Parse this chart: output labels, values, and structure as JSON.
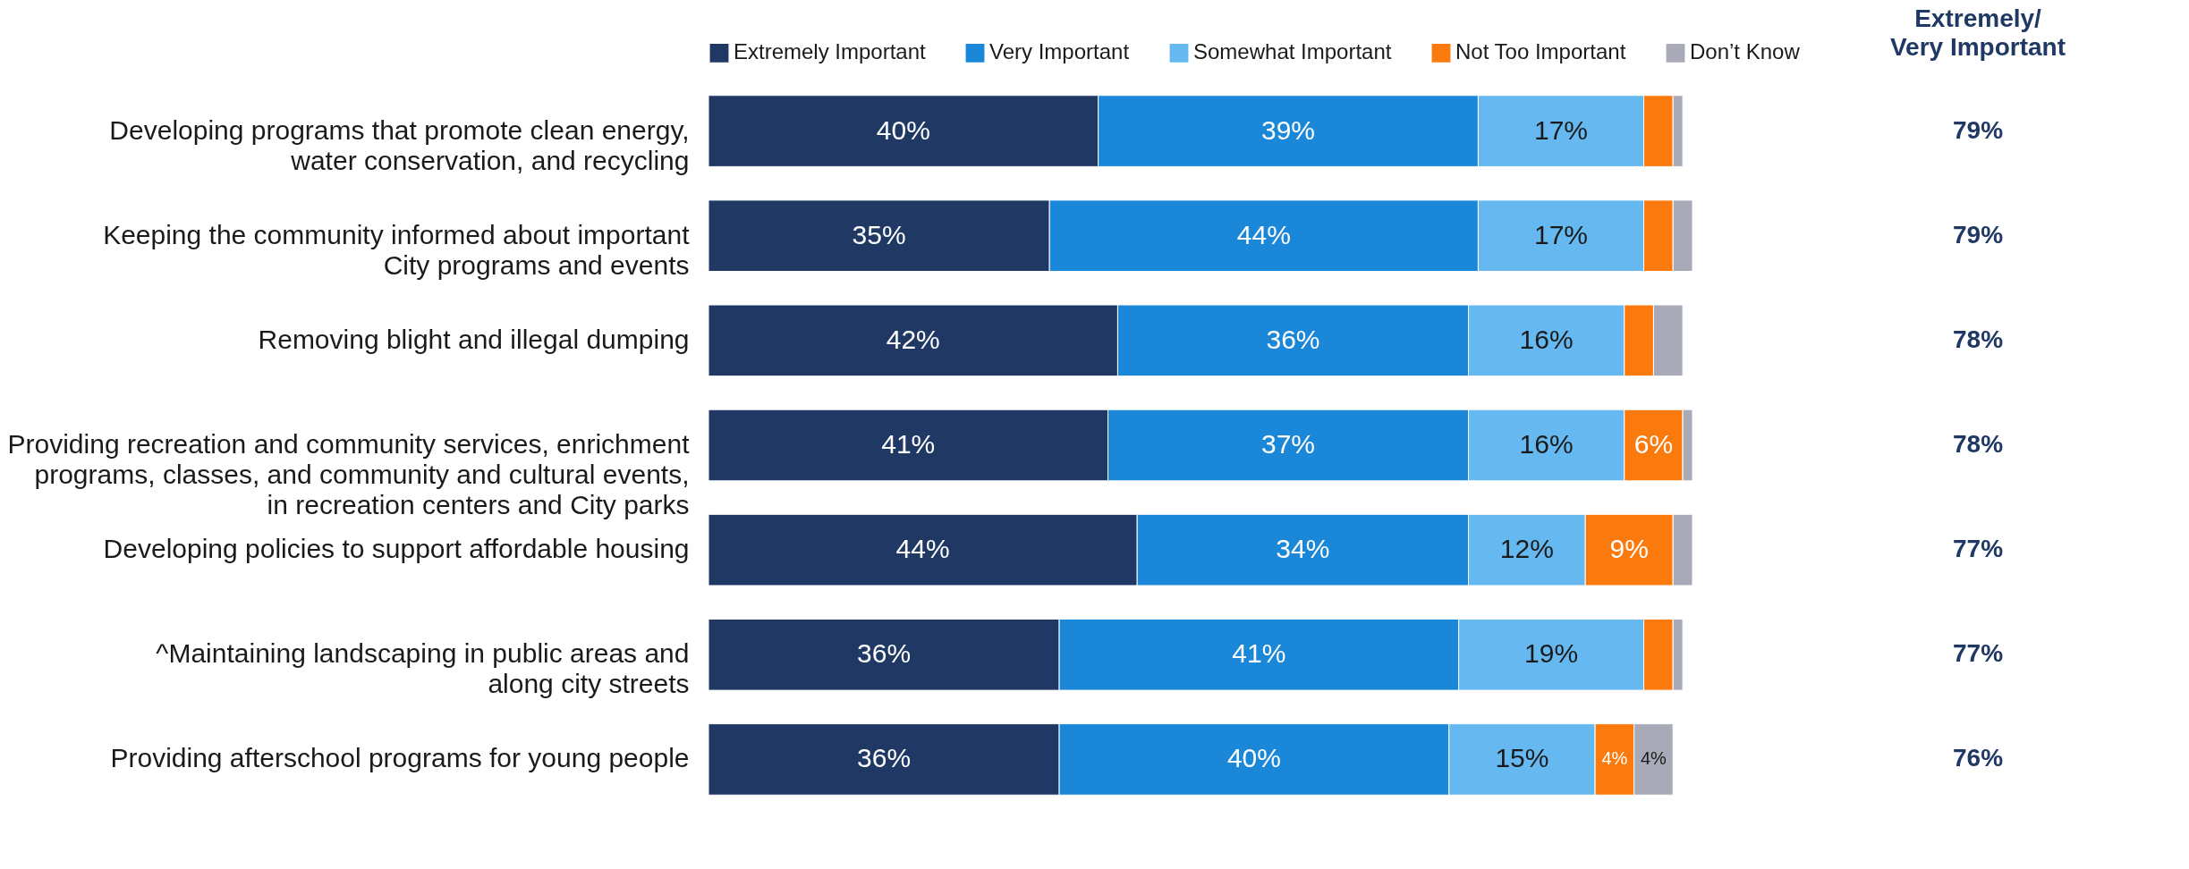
{
  "chart_data": {
    "type": "bar",
    "orientation": "horizontal",
    "stacked": true,
    "legend": "top",
    "categories": [
      "Developing programs that promote clean energy,\nwater conservation, and recycling",
      "Keeping the community informed about important\nCity programs and events",
      "Removing blight and illegal dumping",
      "Providing recreation and community services, enrichment\nprograms, classes, and community and cultural events,\nin recreation centers and City parks",
      "Developing policies to support affordable housing",
      "^Maintaining landscaping in public areas and\nalong city streets",
      "Providing afterschool programs for young people"
    ],
    "series": [
      {
        "name": "Extremely Important",
        "color": "#1f3864",
        "values": [
          40,
          35,
          42,
          41,
          44,
          36,
          36
        ],
        "value_labels": [
          "40%",
          "35%",
          "42%",
          "41%",
          "44%",
          "36%",
          "36%"
        ]
      },
      {
        "name": "Very Important",
        "color": "#1a87d8",
        "values": [
          39,
          44,
          36,
          37,
          34,
          41,
          40
        ],
        "value_labels": [
          "39%",
          "44%",
          "36%",
          "37%",
          "34%",
          "41%",
          "40%"
        ]
      },
      {
        "name": "Somewhat Important",
        "color": "#66b9f0",
        "values": [
          17,
          17,
          16,
          16,
          12,
          19,
          15
        ],
        "value_labels": [
          "17%",
          "17%",
          "16%",
          "16%",
          "12%",
          "19%",
          "15%"
        ]
      },
      {
        "name": "Not Too Important",
        "color": "#fa7a0e",
        "values": [
          3,
          3,
          3,
          6,
          9,
          3,
          4
        ],
        "value_labels": [
          null,
          null,
          null,
          "6%",
          "9%",
          null,
          "4%"
        ]
      },
      {
        "name": "Don’t Know",
        "color": "#a9aab8",
        "values": [
          1,
          2,
          3,
          1,
          2,
          1,
          4
        ],
        "value_labels": [
          null,
          null,
          null,
          null,
          null,
          null,
          "4%"
        ]
      }
    ],
    "annotations": [
      "Extremely/\nVery Important",
      "79%",
      "79%",
      "78%",
      "78%",
      "77%",
      "77%",
      "76%"
    ]
  }
}
